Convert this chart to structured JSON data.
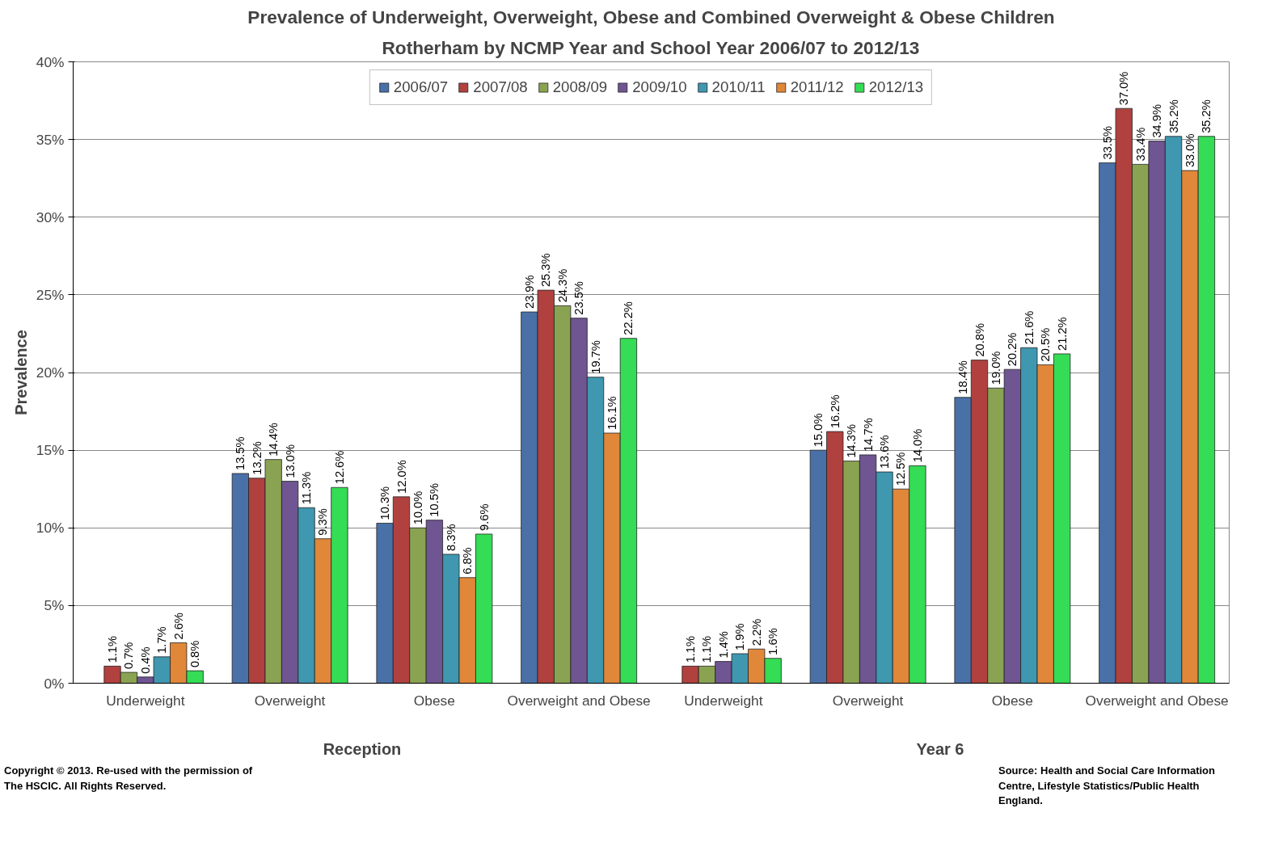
{
  "chart_data": {
    "type": "bar",
    "title": "Prevalence of Underweight, Overweight, Obese and Combined Overweight & Obese Children",
    "subtitle": "Rotherham by NCMP Year and School Year 2006/07 to 2012/13",
    "ylabel": "Prevalence",
    "categories": [
      "Underweight",
      "Overweight",
      "Obese",
      "Overweight and Obese",
      "Underweight",
      "Overweight",
      "Obese",
      "Overweight and Obese"
    ],
    "annotations": [
      "Reception",
      "Year 6",
      "Copyright © 2013. Re-used with the permission of The HSCIC. All Rights Reserved.",
      "Source: Health and Social Care Information Centre, Lifestyle Statistics/Public Health England."
    ],
    "ylim": [
      0,
      40
    ],
    "yticks": [
      {
        "value": 0,
        "label": "0%"
      },
      {
        "value": 5,
        "label": "5%"
      },
      {
        "value": 10,
        "label": "10%"
      },
      {
        "value": 15,
        "label": "15%"
      },
      {
        "value": 20,
        "label": "20%"
      },
      {
        "value": 25,
        "label": "25%"
      },
      {
        "value": 30,
        "label": "30%"
      },
      {
        "value": 35,
        "label": "35%"
      },
      {
        "value": 40,
        "label": "40%"
      }
    ],
    "grid": "y",
    "legend": "top",
    "series": [
      {
        "name": "2006/07",
        "color": "#4a70a8",
        "values": [
          null,
          13.5,
          10.3,
          23.9,
          null,
          15.0,
          18.4,
          33.5
        ],
        "value_labels": [
          null,
          "13.5%",
          "10.3%",
          "23.9%",
          null,
          "15.0%",
          "18.4%",
          "33.5%"
        ]
      },
      {
        "name": "2007/08",
        "color": "#b0413e",
        "values": [
          1.1,
          13.2,
          12.0,
          25.3,
          1.1,
          16.2,
          20.8,
          37.0
        ],
        "value_labels": [
          "1.1%",
          "13.2%",
          "12.0%",
          "25.3%",
          "1.1%",
          "16.2%",
          "20.8%",
          "37.0%"
        ]
      },
      {
        "name": "2008/09",
        "color": "#8aa352",
        "values": [
          0.7,
          14.4,
          10.0,
          24.3,
          1.1,
          14.3,
          19.0,
          33.4
        ],
        "value_labels": [
          "0.7%",
          "14.4%",
          "10.0%",
          "24.3%",
          "1.1%",
          "14.3%",
          "19.0%",
          "33.4%"
        ]
      },
      {
        "name": "2009/10",
        "color": "#6f5591",
        "values": [
          0.4,
          13.0,
          10.5,
          23.5,
          1.4,
          14.7,
          20.2,
          34.9
        ],
        "value_labels": [
          "0.4%",
          "13.0%",
          "10.5%",
          "23.5%",
          "1.4%",
          "14.7%",
          "20.2%",
          "34.9%"
        ]
      },
      {
        "name": "2010/11",
        "color": "#3f97b0",
        "values": [
          1.7,
          11.3,
          8.3,
          19.7,
          1.9,
          13.6,
          21.6,
          35.2
        ],
        "value_labels": [
          "1.7%",
          "11.3%",
          "8.3%",
          "19.7%",
          "1.9%",
          "13.6%",
          "21.6%",
          "35.2%"
        ]
      },
      {
        "name": "2011/12",
        "color": "#e0873a",
        "values": [
          2.6,
          9.3,
          6.8,
          16.1,
          2.2,
          12.5,
          20.5,
          33.0
        ],
        "value_labels": [
          "2.6%",
          "9.3%",
          "6.8%",
          "16.1%",
          "2.2%",
          "12.5%",
          "20.5%",
          "33.0%"
        ]
      },
      {
        "name": "2012/13",
        "color": "#35dc55",
        "values": [
          0.8,
          12.6,
          9.6,
          22.2,
          1.6,
          14.0,
          21.2,
          35.2
        ],
        "value_labels": [
          "0.8%",
          "12.6%",
          "9.6%",
          "22.2%",
          "1.6%",
          "14.0%",
          "21.2%",
          "35.2%"
        ]
      }
    ]
  }
}
